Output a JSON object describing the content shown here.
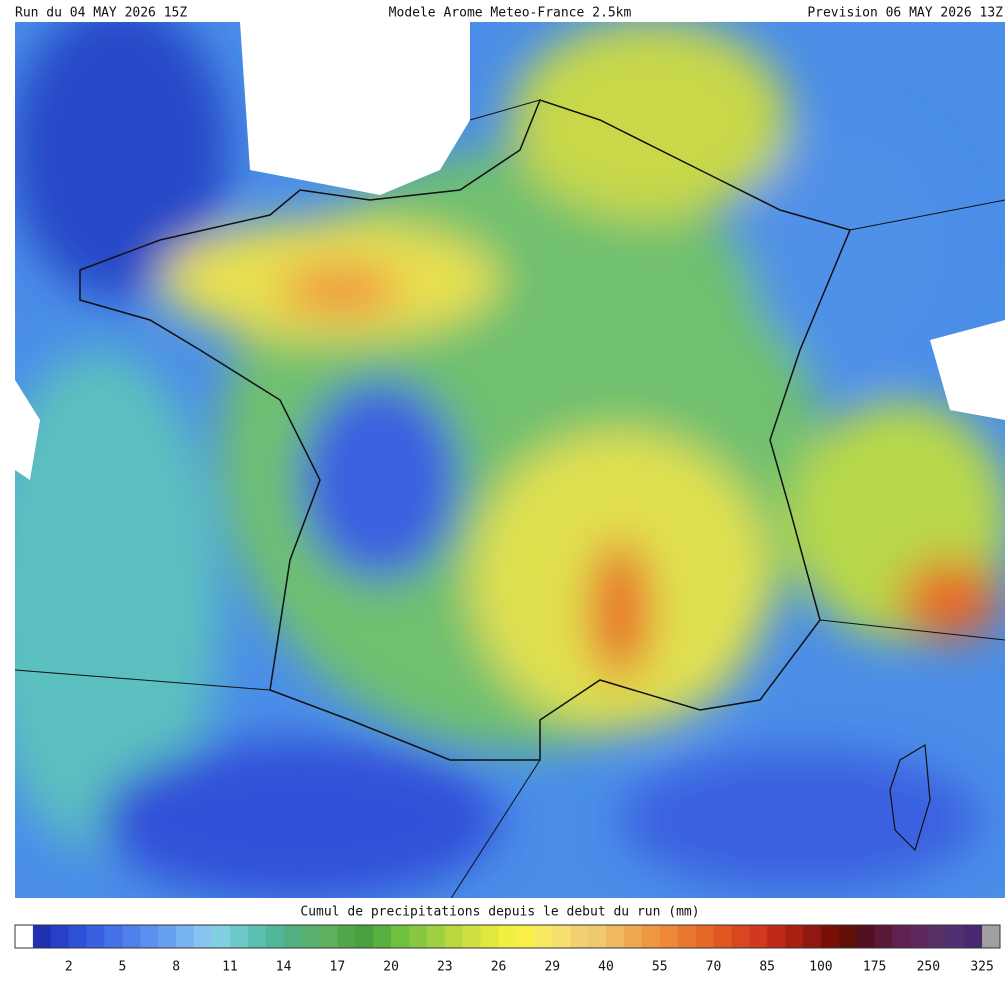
{
  "header": {
    "run": "Run du 04 MAY 2026 15Z",
    "model": "Modele Arome Meteo-France 2.5km",
    "forecast": "Prevision 06 MAY 2026 13Z"
  },
  "legend": {
    "title": "Cumul de precipitations depuis le debut du run (mm)",
    "ticks": [
      2,
      5,
      8,
      11,
      14,
      17,
      20,
      23,
      26,
      29,
      40,
      55,
      70,
      85,
      100,
      175,
      250,
      325
    ],
    "colors": [
      "#ffffff",
      "#2030b0",
      "#2840c8",
      "#3050d8",
      "#3a60e0",
      "#4470e8",
      "#5080ec",
      "#5c90f0",
      "#68a0f0",
      "#78b4f0",
      "#88c4f0",
      "#80d0e0",
      "#6cc8c8",
      "#5cc0b0",
      "#50b898",
      "#50b080",
      "#58b070",
      "#60b060",
      "#50a848",
      "#48a040",
      "#58b040",
      "#70c040",
      "#88c840",
      "#a0d040",
      "#b8d840",
      "#d0e040",
      "#e0e840",
      "#f0f040",
      "#f8f048",
      "#f8e860",
      "#f8e070",
      "#f0d070",
      "#f0c870",
      "#f0b860",
      "#f0a850",
      "#f09840",
      "#f08838",
      "#e87830",
      "#e86828",
      "#e05820",
      "#d84820",
      "#d03820",
      "#c02818",
      "#a82010",
      "#901810",
      "#781008",
      "#601008",
      "#501020",
      "#581838",
      "#602050",
      "#602860",
      "#583068",
      "#503070",
      "#482870",
      "#a0a0a0"
    ]
  }
}
